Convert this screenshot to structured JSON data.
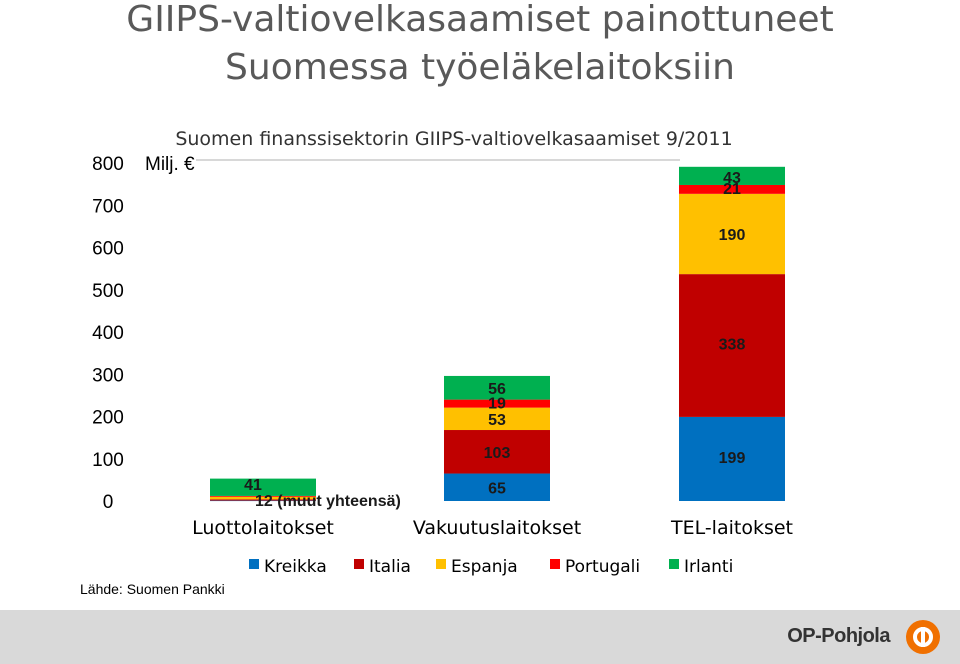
{
  "page": {
    "title_line1": "GIIPS-valtiovelkasaamiset painottuneet",
    "title_line2": "Suomessa työeläkelaitoksiin",
    "source": "Lähde: Suomen Pankki",
    "brand": "OP-Pohjola"
  },
  "chart_data": {
    "type": "bar",
    "stacked": true,
    "title": "Suomen finanssisektorin GIIPS-valtiovelkasaamiset 9/2011",
    "ylabel": "Milj. €",
    "ylim": [
      0,
      800
    ],
    "yticks": [
      0,
      100,
      200,
      300,
      400,
      500,
      600,
      700,
      800
    ],
    "grid": false,
    "legend_position": "bottom",
    "categories": [
      "Luottolaitokset",
      "Vakuutuslaitokset",
      "TEL-laitokset"
    ],
    "series": [
      {
        "name": "Kreikka",
        "color": "#0070c0",
        "values": [
          1,
          65,
          199
        ]
      },
      {
        "name": "Italia",
        "color": "#c00000",
        "values": [
          3,
          103,
          338
        ]
      },
      {
        "name": "Espanja",
        "color": "#ffc000",
        "values": [
          6,
          53,
          190
        ]
      },
      {
        "name": "Portugali",
        "color": "#ff0000",
        "values": [
          2,
          19,
          21
        ]
      },
      {
        "name": "Irlanti",
        "color": "#00b050",
        "values": [
          41,
          56,
          43
        ]
      }
    ],
    "data_labels": [
      {
        "category": 0,
        "series": "Irlanti",
        "text": "41"
      },
      {
        "category": 0,
        "series": "Muut",
        "text": "12 (muut yhteensä)"
      },
      {
        "category": 1,
        "series": "Kreikka",
        "text": "65"
      },
      {
        "category": 1,
        "series": "Italia",
        "text": "103"
      },
      {
        "category": 1,
        "series": "Espanja",
        "text": "53"
      },
      {
        "category": 1,
        "series": "Portugali",
        "text": "19"
      },
      {
        "category": 1,
        "series": "Irlanti",
        "text": "56"
      },
      {
        "category": 2,
        "series": "Kreikka",
        "text": "199"
      },
      {
        "category": 2,
        "series": "Italia",
        "text": "338"
      },
      {
        "category": 2,
        "series": "Espanja",
        "text": "190"
      },
      {
        "category": 2,
        "series": "Portugali",
        "text": "21"
      },
      {
        "category": 2,
        "series": "Irlanti",
        "text": "43"
      }
    ]
  }
}
